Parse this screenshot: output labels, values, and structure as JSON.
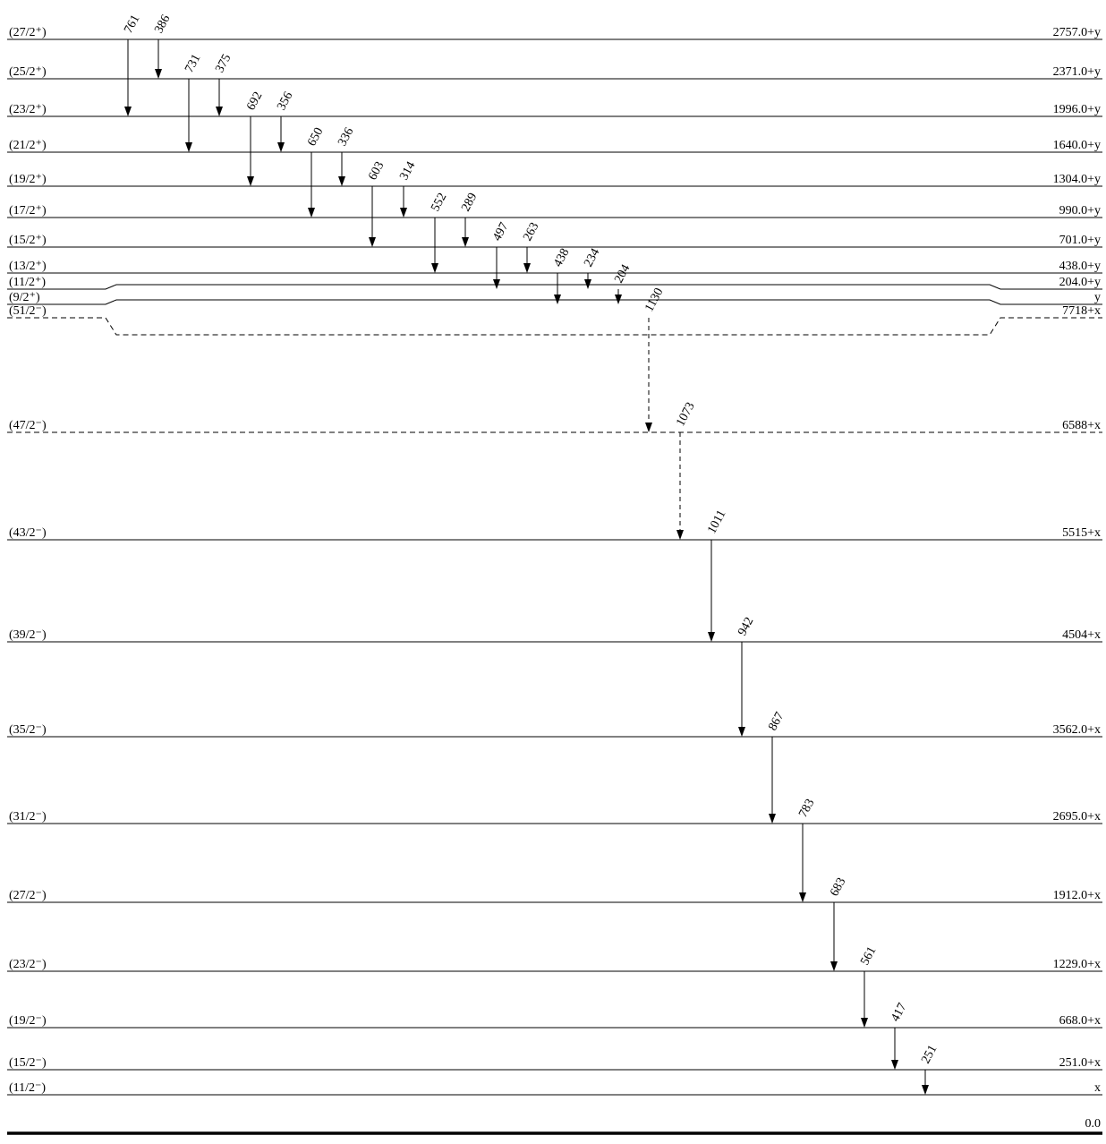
{
  "levels": [
    {
      "spin": "(27/2⁺)",
      "energy": "2757.0+y",
      "style": "solid"
    },
    {
      "spin": "(25/2⁺)",
      "energy": "2371.0+y",
      "style": "solid"
    },
    {
      "spin": "(23/2⁺)",
      "energy": "1996.0+y",
      "style": "solid"
    },
    {
      "spin": "(21/2⁺)",
      "energy": "1640.0+y",
      "style": "solid"
    },
    {
      "spin": "(19/2⁺)",
      "energy": "1304.0+y",
      "style": "solid"
    },
    {
      "spin": "(17/2⁺)",
      "energy": "990.0+y",
      "style": "solid"
    },
    {
      "spin": "(15/2⁺)",
      "energy": "701.0+y",
      "style": "solid"
    },
    {
      "spin": "(13/2⁺)",
      "energy": "438.0+y",
      "style": "solid"
    },
    {
      "spin": "(11/2⁺)",
      "energy": "204.0+y",
      "style": "solid"
    },
    {
      "spin": "(9/2⁺)",
      "energy": "y",
      "style": "solid"
    },
    {
      "spin": "(51/2⁻)",
      "energy": "7718+x",
      "style": "dashed"
    },
    {
      "spin": "(47/2⁻)",
      "energy": "6588+x",
      "style": "dashed"
    },
    {
      "spin": "(43/2⁻)",
      "energy": "5515+x",
      "style": "solid"
    },
    {
      "spin": "(39/2⁻)",
      "energy": "4504+x",
      "style": "solid"
    },
    {
      "spin": "(35/2⁻)",
      "energy": "3562.0+x",
      "style": "solid"
    },
    {
      "spin": "(31/2⁻)",
      "energy": "2695.0+x",
      "style": "solid"
    },
    {
      "spin": "(27/2⁻)",
      "energy": "1912.0+x",
      "style": "solid"
    },
    {
      "spin": "(23/2⁻)",
      "energy": "1229.0+x",
      "style": "solid"
    },
    {
      "spin": "(19/2⁻)",
      "energy": "668.0+x",
      "style": "solid"
    },
    {
      "spin": "(15/2⁻)",
      "energy": "251.0+x",
      "style": "solid"
    },
    {
      "spin": "(11/2⁻)",
      "energy": "x",
      "style": "solid"
    }
  ],
  "ground": {
    "energy": "0.0"
  },
  "transitions": [
    {
      "label": "761",
      "from": "2757.0+y",
      "to": "1996.0+y",
      "style": "solid"
    },
    {
      "label": "386",
      "from": "2757.0+y",
      "to": "2371.0+y",
      "style": "solid"
    },
    {
      "label": "731",
      "from": "2371.0+y",
      "to": "1640.0+y",
      "style": "solid"
    },
    {
      "label": "375",
      "from": "2371.0+y",
      "to": "1996.0+y",
      "style": "solid"
    },
    {
      "label": "692",
      "from": "1996.0+y",
      "to": "1304.0+y",
      "style": "solid"
    },
    {
      "label": "356",
      "from": "1996.0+y",
      "to": "1640.0+y",
      "style": "solid"
    },
    {
      "label": "650",
      "from": "1640.0+y",
      "to": "990.0+y",
      "style": "solid"
    },
    {
      "label": "336",
      "from": "1640.0+y",
      "to": "1304.0+y",
      "style": "solid"
    },
    {
      "label": "603",
      "from": "1304.0+y",
      "to": "701.0+y",
      "style": "solid"
    },
    {
      "label": "314",
      "from": "1304.0+y",
      "to": "990.0+y",
      "style": "solid"
    },
    {
      "label": "552",
      "from": "990.0+y",
      "to": "438.0+y",
      "style": "solid"
    },
    {
      "label": "289",
      "from": "990.0+y",
      "to": "701.0+y",
      "style": "solid"
    },
    {
      "label": "497",
      "from": "701.0+y",
      "to": "204.0+y",
      "style": "solid"
    },
    {
      "label": "263",
      "from": "701.0+y",
      "to": "438.0+y",
      "style": "solid"
    },
    {
      "label": "438",
      "from": "438.0+y",
      "to": "y",
      "style": "solid"
    },
    {
      "label": "234",
      "from": "438.0+y",
      "to": "204.0+y",
      "style": "solid"
    },
    {
      "label": "204",
      "from": "204.0+y",
      "to": "y",
      "style": "solid"
    },
    {
      "label": "1130",
      "from": "7718+x",
      "to": "6588+x",
      "style": "dashed"
    },
    {
      "label": "1073",
      "from": "6588+x",
      "to": "5515+x",
      "style": "dashed"
    },
    {
      "label": "1011",
      "from": "5515+x",
      "to": "4504+x",
      "style": "solid"
    },
    {
      "label": "942",
      "from": "4504+x",
      "to": "3562.0+x",
      "style": "solid"
    },
    {
      "label": "867",
      "from": "3562.0+x",
      "to": "2695.0+x",
      "style": "solid"
    },
    {
      "label": "783",
      "from": "2695.0+x",
      "to": "1912.0+x",
      "style": "solid"
    },
    {
      "label": "683",
      "from": "1912.0+x",
      "to": "1229.0+x",
      "style": "solid"
    },
    {
      "label": "561",
      "from": "1229.0+x",
      "to": "668.0+x",
      "style": "solid"
    },
    {
      "label": "417",
      "from": "668.0+x",
      "to": "251.0+x",
      "style": "solid"
    },
    {
      "label": "251",
      "from": "251.0+x",
      "to": "x",
      "style": "solid"
    }
  ]
}
